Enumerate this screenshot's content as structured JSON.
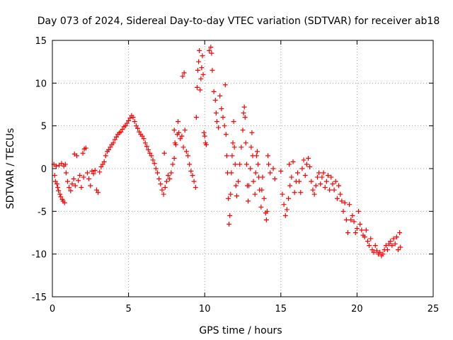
{
  "chart_data": {
    "type": "scatter",
    "title": "Day 073 of 2024, Sidereal Day-to-day VTEC variation (SDTVAR) for receiver ab18",
    "xlabel": "GPS time / hours",
    "ylabel": "SDTVAR / TECUs",
    "xlim": [
      0,
      25
    ],
    "ylim": [
      -15,
      15
    ],
    "xticks": [
      0,
      5,
      10,
      15,
      20,
      25
    ],
    "yticks": [
      -15,
      -10,
      -5,
      0,
      5,
      10,
      15
    ],
    "grid": true,
    "marker": "+",
    "colors": {
      "series": "#ff0000",
      "grid": "#a0a0a0",
      "axis": "#000000"
    },
    "series": [
      {
        "name": "SDTVAR",
        "points": [
          [
            0.1,
            0.5
          ],
          [
            0.15,
            -0.8
          ],
          [
            0.2,
            -1.5
          ],
          [
            0.25,
            0.3
          ],
          [
            0.3,
            -1.8
          ],
          [
            0.35,
            -2.2
          ],
          [
            0.4,
            -2.6
          ],
          [
            0.45,
            0.4
          ],
          [
            0.5,
            -3.0
          ],
          [
            0.55,
            -3.3
          ],
          [
            0.6,
            0.6
          ],
          [
            0.65,
            -3.6
          ],
          [
            0.7,
            -3.8
          ],
          [
            0.75,
            0.3
          ],
          [
            0.8,
            -4.0
          ],
          [
            0.85,
            0.5
          ],
          [
            0.9,
            -0.5
          ],
          [
            1.0,
            -1.5
          ],
          [
            1.1,
            -2.2
          ],
          [
            1.2,
            -2.6
          ],
          [
            1.3,
            -1.8
          ],
          [
            1.4,
            -1.2
          ],
          [
            1.45,
            1.7
          ],
          [
            1.5,
            -2.0
          ],
          [
            1.6,
            1.5
          ],
          [
            1.7,
            -1.4
          ],
          [
            1.8,
            -0.8
          ],
          [
            1.9,
            -2.2
          ],
          [
            2.0,
            1.8
          ],
          [
            2.05,
            -1.0
          ],
          [
            2.1,
            2.3
          ],
          [
            2.2,
            2.4
          ],
          [
            2.3,
            -0.5
          ],
          [
            2.4,
            -1.2
          ],
          [
            2.5,
            -2.0
          ],
          [
            2.6,
            -0.3
          ],
          [
            2.7,
            -0.6
          ],
          [
            2.8,
            -0.2
          ],
          [
            2.9,
            -2.5
          ],
          [
            3.0,
            -2.8
          ],
          [
            3.1,
            -0.4
          ],
          [
            3.2,
            0.2
          ],
          [
            3.3,
            0.5
          ],
          [
            3.4,
            0.8
          ],
          [
            3.5,
            1.5
          ],
          [
            3.6,
            2.0
          ],
          [
            3.7,
            2.2
          ],
          [
            3.8,
            2.5
          ],
          [
            3.9,
            2.8
          ],
          [
            4.0,
            3.0
          ],
          [
            4.1,
            3.4
          ],
          [
            4.2,
            3.7
          ],
          [
            4.3,
            4.0
          ],
          [
            4.4,
            4.2
          ],
          [
            4.5,
            4.3
          ],
          [
            4.6,
            4.6
          ],
          [
            4.7,
            4.9
          ],
          [
            4.8,
            5.0
          ],
          [
            4.9,
            5.3
          ],
          [
            5.0,
            5.6
          ],
          [
            5.1,
            5.9
          ],
          [
            5.2,
            6.2
          ],
          [
            5.3,
            6.0
          ],
          [
            5.4,
            5.5
          ],
          [
            5.5,
            5.0
          ],
          [
            5.6,
            4.7
          ],
          [
            5.7,
            4.3
          ],
          [
            5.8,
            4.0
          ],
          [
            5.9,
            3.8
          ],
          [
            6.0,
            3.5
          ],
          [
            6.1,
            3.0
          ],
          [
            6.2,
            2.6
          ],
          [
            6.3,
            2.2
          ],
          [
            6.4,
            1.8
          ],
          [
            6.5,
            1.5
          ],
          [
            6.6,
            1.0
          ],
          [
            6.7,
            0.6
          ],
          [
            6.8,
            0.0
          ],
          [
            6.9,
            -0.5
          ],
          [
            7.0,
            -1.2
          ],
          [
            7.1,
            -1.8
          ],
          [
            7.2,
            -2.5
          ],
          [
            7.3,
            -3.0
          ],
          [
            7.35,
            1.8
          ],
          [
            7.4,
            -2.2
          ],
          [
            7.5,
            -1.5
          ],
          [
            7.6,
            -0.8
          ],
          [
            7.7,
            -1.2
          ],
          [
            7.8,
            -0.5
          ],
          [
            7.9,
            0.5
          ],
          [
            8.0,
            1.2
          ],
          [
            8.0,
            4.5
          ],
          [
            8.05,
            3.0
          ],
          [
            8.1,
            2.8
          ],
          [
            8.2,
            4.0
          ],
          [
            8.25,
            5.5
          ],
          [
            8.3,
            4.2
          ],
          [
            8.4,
            3.5
          ],
          [
            8.5,
            3.8
          ],
          [
            8.55,
            10.8
          ],
          [
            8.6,
            2.5
          ],
          [
            8.65,
            11.2
          ],
          [
            8.7,
            4.5
          ],
          [
            8.8,
            2.0
          ],
          [
            8.9,
            1.5
          ],
          [
            9.0,
            0.5
          ],
          [
            9.1,
            -0.3
          ],
          [
            9.2,
            -0.8
          ],
          [
            9.3,
            -1.5
          ],
          [
            9.4,
            -2.2
          ],
          [
            9.45,
            6.0
          ],
          [
            9.5,
            9.5
          ],
          [
            9.55,
            11.5
          ],
          [
            9.6,
            12.5
          ],
          [
            9.65,
            13.8
          ],
          [
            9.7,
            9.2
          ],
          [
            9.75,
            10.5
          ],
          [
            9.8,
            11.8
          ],
          [
            9.85,
            13.2
          ],
          [
            9.9,
            11.0
          ],
          [
            9.95,
            4.2
          ],
          [
            10.0,
            3.8
          ],
          [
            10.05,
            3.0
          ],
          [
            10.1,
            2.8
          ],
          [
            10.3,
            13.8
          ],
          [
            10.4,
            14.2
          ],
          [
            10.45,
            13.5
          ],
          [
            10.5,
            11.5
          ],
          [
            10.6,
            9.0
          ],
          [
            10.7,
            8.0
          ],
          [
            10.75,
            6.5
          ],
          [
            10.8,
            5.5
          ],
          [
            10.9,
            4.8
          ],
          [
            11.0,
            8.5
          ],
          [
            11.1,
            7.0
          ],
          [
            11.2,
            6.0
          ],
          [
            11.3,
            5.0
          ],
          [
            11.35,
            9.8
          ],
          [
            11.4,
            4.0
          ],
          [
            11.45,
            1.5
          ],
          [
            11.5,
            -0.5
          ],
          [
            11.55,
            -3.5
          ],
          [
            11.6,
            -6.5
          ],
          [
            11.65,
            -5.5
          ],
          [
            11.7,
            -3.0
          ],
          [
            11.75,
            -0.5
          ],
          [
            11.8,
            1.5
          ],
          [
            11.85,
            3.0
          ],
          [
            11.9,
            5.5
          ],
          [
            11.95,
            2.5
          ],
          [
            12.0,
            0.5
          ],
          [
            12.05,
            -2.0
          ],
          [
            12.1,
            -3.2
          ],
          [
            12.2,
            -1.5
          ],
          [
            12.3,
            0.5
          ],
          [
            12.4,
            2.5
          ],
          [
            12.5,
            4.5
          ],
          [
            12.55,
            6.5
          ],
          [
            12.6,
            7.2
          ],
          [
            12.65,
            6.0
          ],
          [
            12.7,
            3.0
          ],
          [
            12.75,
            0.5
          ],
          [
            12.8,
            -2.0
          ],
          [
            12.85,
            -3.8
          ],
          [
            12.9,
            -2.0
          ],
          [
            13.0,
            0.0
          ],
          [
            13.05,
            2.5
          ],
          [
            13.1,
            4.2
          ],
          [
            13.15,
            1.5
          ],
          [
            13.2,
            -1.5
          ],
          [
            13.3,
            -3.0
          ],
          [
            13.35,
            -0.5
          ],
          [
            13.4,
            1.5
          ],
          [
            13.45,
            2.0
          ],
          [
            13.5,
            0.5
          ],
          [
            13.55,
            -1.0
          ],
          [
            13.6,
            -2.5
          ],
          [
            13.7,
            -4.5
          ],
          [
            13.75,
            -2.5
          ],
          [
            13.8,
            -1.0
          ],
          [
            13.9,
            -3.5
          ],
          [
            14.0,
            -5.2
          ],
          [
            14.05,
            -6.0
          ],
          [
            14.1,
            -5.0
          ],
          [
            14.15,
            1.5
          ],
          [
            14.2,
            0.5
          ],
          [
            14.3,
            -0.5
          ],
          [
            14.5,
            0.0
          ],
          [
            14.6,
            -1.2
          ],
          [
            15.0,
            -0.3
          ],
          [
            15.1,
            -3.0
          ],
          [
            15.2,
            -4.2
          ],
          [
            15.3,
            -5.5
          ],
          [
            15.4,
            -4.8
          ],
          [
            15.5,
            -3.5
          ],
          [
            15.55,
            0.5
          ],
          [
            15.6,
            -2.0
          ],
          [
            15.7,
            -1.0
          ],
          [
            15.8,
            0.8
          ],
          [
            15.9,
            -2.8
          ],
          [
            16.0,
            -1.5
          ],
          [
            16.1,
            -0.5
          ],
          [
            16.2,
            -1.5
          ],
          [
            16.3,
            -2.8
          ],
          [
            16.4,
            0.0
          ],
          [
            16.5,
            1.0
          ],
          [
            16.6,
            -0.8
          ],
          [
            16.7,
            0.5
          ],
          [
            16.8,
            1.2
          ],
          [
            16.9,
            0.2
          ],
          [
            17.0,
            -1.5
          ],
          [
            17.1,
            -2.5
          ],
          [
            17.2,
            -3.0
          ],
          [
            17.3,
            -2.0
          ],
          [
            17.4,
            -1.0
          ],
          [
            17.5,
            -0.5
          ],
          [
            17.6,
            -1.8
          ],
          [
            17.7,
            -1.0
          ],
          [
            17.8,
            -0.5
          ],
          [
            17.9,
            -2.2
          ],
          [
            18.0,
            -1.5
          ],
          [
            18.1,
            -0.8
          ],
          [
            18.2,
            -2.5
          ],
          [
            18.3,
            -1.0
          ],
          [
            18.4,
            -1.8
          ],
          [
            18.5,
            -2.5
          ],
          [
            18.6,
            -1.5
          ],
          [
            18.7,
            -3.5
          ],
          [
            18.8,
            -2.0
          ],
          [
            18.9,
            -3.0
          ],
          [
            19.0,
            -3.8
          ],
          [
            19.1,
            -5.0
          ],
          [
            19.2,
            -4.0
          ],
          [
            19.3,
            -6.0
          ],
          [
            19.4,
            -7.5
          ],
          [
            19.5,
            -4.2
          ],
          [
            19.6,
            -6.0
          ],
          [
            19.7,
            -5.5
          ],
          [
            19.8,
            -6.2
          ],
          [
            19.9,
            -7.5
          ],
          [
            20.0,
            -7.0
          ],
          [
            20.1,
            -5.0
          ],
          [
            20.2,
            -6.5
          ],
          [
            20.3,
            -7.2
          ],
          [
            20.4,
            -7.8
          ],
          [
            20.5,
            -8.0
          ],
          [
            20.6,
            -7.2
          ],
          [
            20.7,
            -8.5
          ],
          [
            20.8,
            -9.0
          ],
          [
            20.9,
            -8.2
          ],
          [
            21.0,
            -9.5
          ],
          [
            21.1,
            -9.8
          ],
          [
            21.2,
            -9.0
          ],
          [
            21.3,
            -9.6
          ],
          [
            21.4,
            -10.0
          ],
          [
            21.5,
            -9.8
          ],
          [
            21.6,
            -10.2
          ],
          [
            21.7,
            -10.0
          ],
          [
            21.8,
            -9.5
          ],
          [
            21.9,
            -9.0
          ],
          [
            22.0,
            -9.5
          ],
          [
            22.1,
            -8.8
          ],
          [
            22.2,
            -8.5
          ],
          [
            22.3,
            -9.0
          ],
          [
            22.4,
            -8.2
          ],
          [
            22.5,
            -8.8
          ],
          [
            22.6,
            -8.0
          ],
          [
            22.7,
            -9.5
          ],
          [
            22.8,
            -7.5
          ],
          [
            22.85,
            -9.2
          ]
        ]
      }
    ]
  }
}
